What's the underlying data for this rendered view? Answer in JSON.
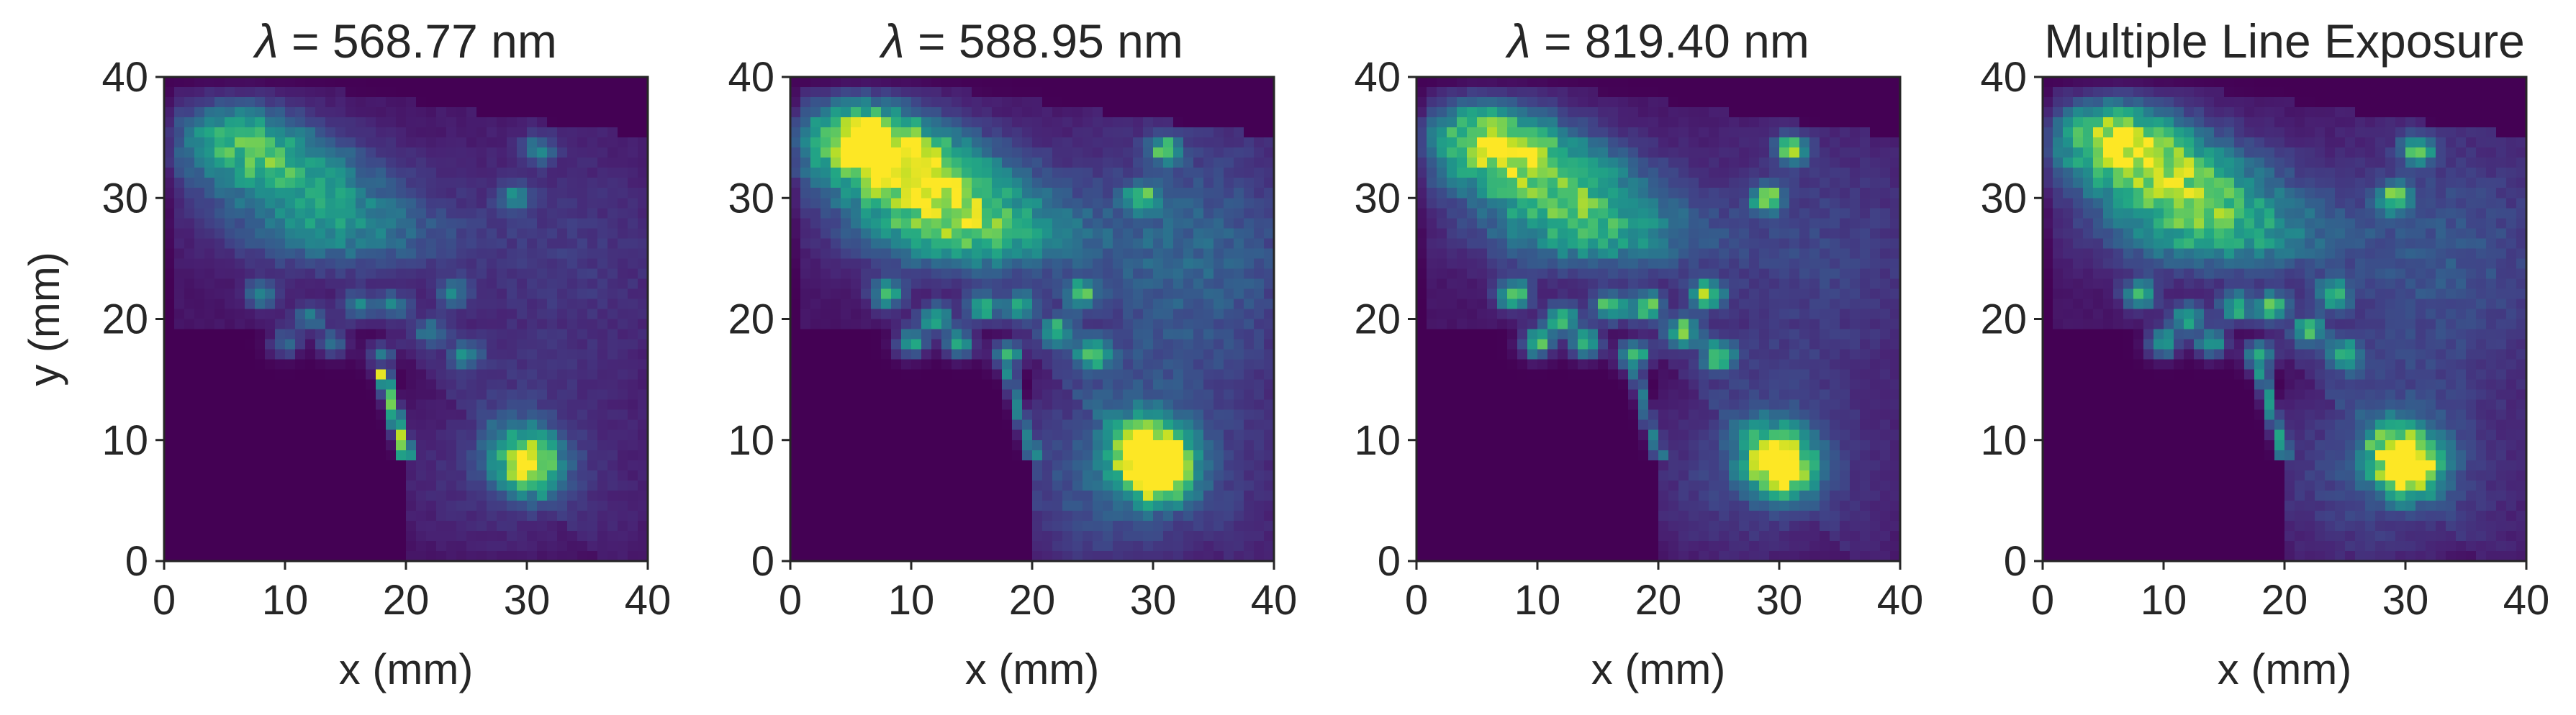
{
  "chart_data": [
    {
      "type": "heatmap",
      "title_symbol": "λ",
      "title_rest": " = 568.77 nm",
      "xlabel": "x (mm)",
      "ylabel": "y (mm)",
      "xlim": [
        0,
        40
      ],
      "ylim": [
        0,
        40
      ],
      "xticks": [
        "0",
        "10",
        "20",
        "30",
        "40"
      ],
      "yticks": [
        "0",
        "10",
        "20",
        "30",
        "40"
      ],
      "colormap": "viridis",
      "grid": false,
      "features": {
        "left": 0.55,
        "blobs": 0.4,
        "right": 0.18,
        "bottom": 0.3,
        "streak": 1.0,
        "heart": 0.55
      }
    },
    {
      "type": "heatmap",
      "title_symbol": "λ",
      "title_rest": " = 588.95 nm",
      "xlabel": "x (mm)",
      "ylabel": "",
      "xlim": [
        0,
        40
      ],
      "ylim": [
        0,
        40
      ],
      "xticks": [
        "0",
        "10",
        "20",
        "30",
        "40"
      ],
      "yticks": [
        "0",
        "10",
        "20",
        "30",
        "40"
      ],
      "colormap": "viridis",
      "grid": false,
      "features": {
        "left": 0.95,
        "blobs": 0.65,
        "right": 0.45,
        "bottom": 0.6,
        "streak": 0.55,
        "heart": 1.0
      }
    },
    {
      "type": "heatmap",
      "title_symbol": "λ",
      "title_rest": " = 819.40 nm",
      "xlabel": "x (mm)",
      "ylabel": "",
      "xlim": [
        0,
        40
      ],
      "ylim": [
        0,
        40
      ],
      "xticks": [
        "0",
        "10",
        "20",
        "30",
        "40"
      ],
      "yticks": [
        "0",
        "10",
        "20",
        "30",
        "40"
      ],
      "colormap": "viridis",
      "grid": false,
      "features": {
        "left": 0.75,
        "blobs": 0.8,
        "right": 0.25,
        "bottom": 0.4,
        "streak": 0.45,
        "heart": 0.7
      }
    },
    {
      "type": "heatmap",
      "title_symbol": "",
      "title_rest": "Multiple Line Exposure",
      "xlabel": "x (mm)",
      "ylabel": "",
      "xlim": [
        0,
        40
      ],
      "ylim": [
        0,
        40
      ],
      "xticks": [
        "0",
        "10",
        "20",
        "30",
        "40"
      ],
      "yticks": [
        "0",
        "10",
        "20",
        "30",
        "40"
      ],
      "colormap": "viridis",
      "grid": false,
      "features": {
        "left": 0.8,
        "blobs": 0.7,
        "right": 0.35,
        "bottom": 0.45,
        "streak": 0.6,
        "heart": 0.75
      }
    }
  ]
}
